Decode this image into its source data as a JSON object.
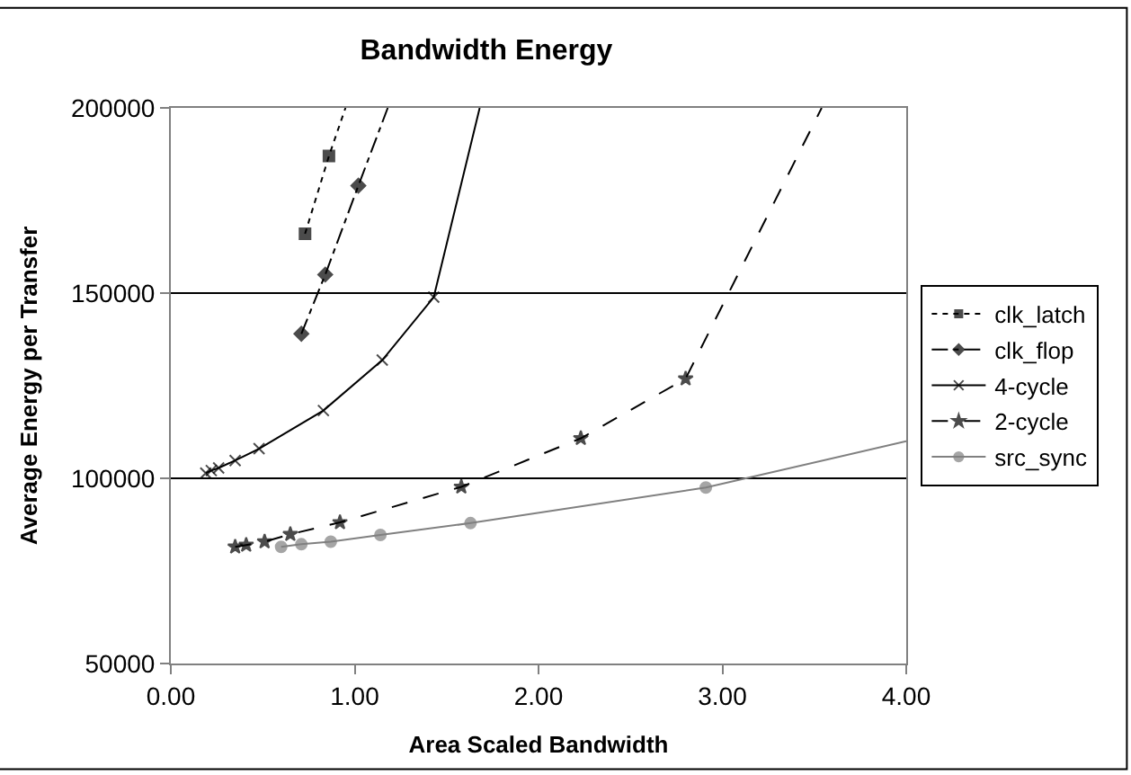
{
  "chart_data": {
    "type": "line",
    "title": "Bandwidth Energy",
    "xlabel": "Area Scaled Bandwidth",
    "ylabel": "Average Energy per Transfer",
    "xlim": [
      0,
      4
    ],
    "xticks": [
      {
        "value": 0,
        "label": "0.00"
      },
      {
        "value": 1,
        "label": "1.00"
      },
      {
        "value": 2,
        "label": "2.00"
      },
      {
        "value": 3,
        "label": "3.00"
      },
      {
        "value": 4,
        "label": "4.00"
      }
    ],
    "ylim": [
      50000,
      200000
    ],
    "yticks": [
      50000,
      100000,
      150000,
      200000
    ],
    "grid": "y",
    "legend": "right",
    "series": [
      {
        "name": "clk_latch",
        "color": "#000000",
        "marker": "square",
        "line_style": "dotted",
        "x": [
          0.73,
          0.86,
          0.95
        ],
        "values": [
          166000,
          187000,
          200000
        ]
      },
      {
        "name": "clk_flop",
        "color": "#000000",
        "marker": "diamond",
        "line_style": "dashdot",
        "x": [
          0.71,
          0.84,
          1.02,
          1.18
        ],
        "values": [
          139000,
          155000,
          179000,
          200000
        ]
      },
      {
        "name": "4-cycle",
        "color": "#000000",
        "marker": "cross",
        "line_style": "solid",
        "x": [
          0.19,
          0.22,
          0.26,
          0.35,
          0.48,
          0.83,
          1.15,
          1.43,
          1.68
        ],
        "values": [
          101400,
          102100,
          102800,
          104800,
          108000,
          118300,
          131900,
          148900,
          200000
        ]
      },
      {
        "name": "2-cycle",
        "color": "#000000",
        "marker": "star",
        "line_style": "dashed",
        "x": [
          0.35,
          0.41,
          0.51,
          0.65,
          0.92,
          1.58,
          2.23,
          2.8,
          3.54
        ],
        "values": [
          81500,
          82000,
          82900,
          84900,
          88100,
          97700,
          110800,
          126900,
          200000
        ]
      },
      {
        "name": "src_sync",
        "color": "#808080",
        "marker": "circle",
        "line_style": "solid",
        "x": [
          0.6,
          0.71,
          0.87,
          1.14,
          1.63,
          2.91,
          4.0
        ],
        "values": [
          81500,
          82200,
          82900,
          84700,
          87900,
          97500,
          110000
        ]
      }
    ]
  }
}
